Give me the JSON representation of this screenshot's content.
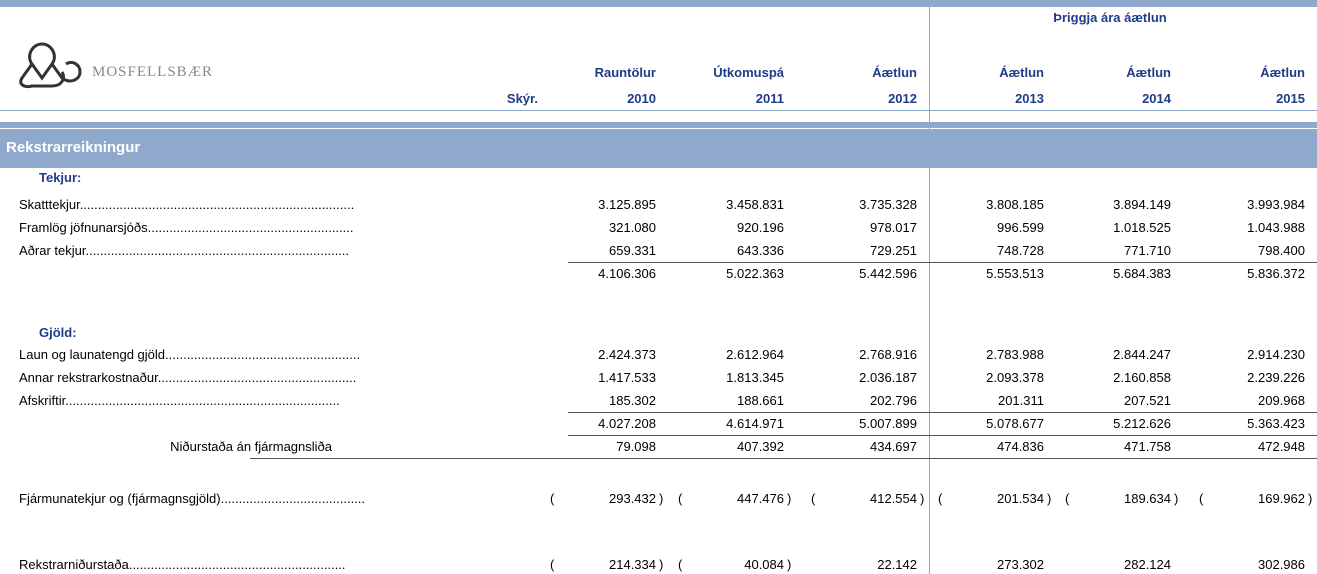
{
  "header": {
    "brand": "MOSFELLSBÆR",
    "group_title": "Þriggja ára áætlun",
    "note_label": "Skýr.",
    "columns": [
      {
        "label": "Rauntölur",
        "year": "2010"
      },
      {
        "label": "Útkomuspá",
        "year": "2011"
      },
      {
        "label": "Áætlun",
        "year": "2012"
      },
      {
        "label": "Áætlun",
        "year": "2013"
      },
      {
        "label": "Áætlun",
        "year": "2014"
      },
      {
        "label": "Áætlun",
        "year": "2015"
      }
    ]
  },
  "section": "Rekstrarreikningur",
  "rows": [
    {
      "label": "Tekjur:"
    },
    {
      "label": "Skatttekjur............................................................................",
      "values": [
        "3.125.895",
        "3.458.831",
        "3.735.328",
        "3.808.185",
        "3.894.149",
        "3.993.984"
      ]
    },
    {
      "label": "Framlög jöfnunarsjóðs.........................................................",
      "values": [
        "321.080",
        "920.196",
        "978.017",
        "996.599",
        "1.018.525",
        "1.043.988"
      ]
    },
    {
      "label": "Aðrar tekjur.........................................................................",
      "values": [
        "659.331",
        "643.336",
        "729.251",
        "748.728",
        "771.710",
        "798.400"
      ]
    },
    {
      "values": [
        "4.106.306",
        "5.022.363",
        "5.442.596",
        "5.553.513",
        "5.684.383",
        "5.836.372"
      ]
    },
    {
      "label": "Gjöld:"
    },
    {
      "label": "Laun og launatengd gjöld......................................................",
      "values": [
        "2.424.373",
        "2.612.964",
        "2.768.916",
        "2.783.988",
        "2.844.247",
        "2.914.230"
      ]
    },
    {
      "label": "Annar rekstrarkostnaður.......................................................",
      "values": [
        "1.417.533",
        "1.813.345",
        "2.036.187",
        "2.093.378",
        "2.160.858",
        "2.239.226"
      ]
    },
    {
      "label": "Afskriftir............................................................................",
      "values": [
        "185.302",
        "188.661",
        "202.796",
        "201.311",
        "207.521",
        "209.968"
      ]
    },
    {
      "values": [
        "4.027.208",
        "4.614.971",
        "5.007.899",
        "5.078.677",
        "5.212.626",
        "5.363.423"
      ]
    },
    {
      "label": "Niðurstaða án fjármagnsliða",
      "values": [
        "79.098",
        "407.392",
        "434.697",
        "474.836",
        "471.758",
        "472.948"
      ]
    },
    {
      "label": "Fjármunatekjur og (fjármagnsgjöld)........................................",
      "values": [
        {
          "open": "(",
          "value": "293.432",
          "close": ")"
        },
        {
          "open": "(",
          "value": "447.476",
          "close": ")"
        },
        {
          "open": "(",
          "value": "412.554",
          "close": ")"
        },
        {
          "open": "(",
          "value": "201.534",
          "close": ")"
        },
        {
          "open": "(",
          "value": "189.634",
          "close": ")"
        },
        {
          "open": "(",
          "value": "169.962",
          "close": ")"
        }
      ]
    },
    {
      "label": "Rekstrarniðurstaða............................................................",
      "values": [
        {
          "open": "(",
          "value": "214.334",
          "close": ")"
        },
        {
          "open": "(",
          "value": "40.084",
          "close": ")"
        },
        "22.142",
        "273.302",
        "282.124",
        "302.986"
      ]
    }
  ]
}
